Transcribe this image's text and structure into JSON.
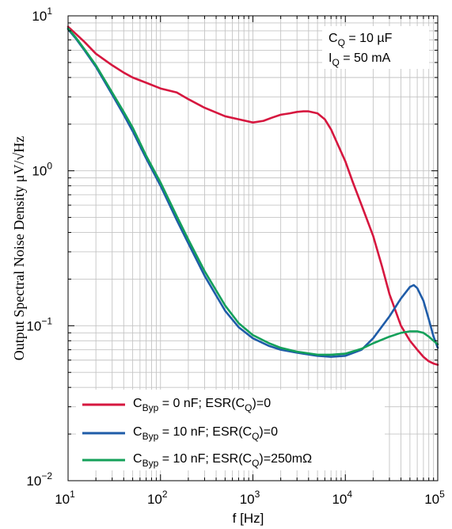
{
  "chart_data": {
    "type": "line",
    "xlabel": "f [Hz]",
    "ylabel": "Output Spectral Noise Density μV/√Hz",
    "xscale": "log",
    "yscale": "log",
    "xlim": [
      10,
      100000
    ],
    "ylim": [
      0.01,
      10
    ],
    "grid": true,
    "x_ticks": [
      {
        "value": 10,
        "base": "10",
        "exp": "1"
      },
      {
        "value": 100,
        "base": "10",
        "exp": "2"
      },
      {
        "value": 1000,
        "base": "10",
        "exp": "3"
      },
      {
        "value": 10000,
        "base": "10",
        "exp": "4"
      },
      {
        "value": 100000,
        "base": "10",
        "exp": "5"
      }
    ],
    "y_ticks": [
      {
        "value": 10,
        "base": "10",
        "exp": "1"
      },
      {
        "value": 1,
        "base": "10",
        "exp": "0"
      },
      {
        "value": 0.1,
        "base": "10",
        "exp": "−1"
      },
      {
        "value": 0.01,
        "base": "10",
        "exp": "−2"
      }
    ],
    "annotation": [
      "C",
      "Q",
      " = 10 µF",
      "I",
      "Q",
      " = 50 mA"
    ],
    "legend_position": "bottom-left",
    "series": [
      {
        "legend": [
          "C",
          "Byp",
          " = 0 nF; ESR(C",
          "Q",
          ")=0"
        ],
        "color": "#d6173f",
        "x": [
          10,
          12,
          15,
          20,
          30,
          40,
          50,
          70,
          100,
          150,
          200,
          300,
          500,
          700,
          1000,
          1300,
          1600,
          2000,
          2500,
          3000,
          3500,
          4000,
          5000,
          6000,
          7000,
          8000,
          10000,
          12000,
          15000,
          20000,
          25000,
          30000,
          40000,
          50000,
          60000,
          70000,
          80000,
          90000,
          100000
        ],
        "y": [
          8.5,
          7.7,
          6.8,
          5.7,
          4.8,
          4.3,
          4.0,
          3.7,
          3.4,
          3.2,
          2.9,
          2.55,
          2.25,
          2.15,
          2.05,
          2.1,
          2.2,
          2.3,
          2.35,
          2.4,
          2.42,
          2.42,
          2.35,
          2.15,
          1.85,
          1.55,
          1.15,
          0.85,
          0.6,
          0.38,
          0.24,
          0.16,
          0.1,
          0.08,
          0.07,
          0.063,
          0.059,
          0.057,
          0.056
        ]
      },
      {
        "legend": [
          "C",
          "Byp",
          " = 10 nF; ESR(C",
          "Q",
          ")=0"
        ],
        "color": "#1f5ca8",
        "x": [
          10,
          12,
          15,
          20,
          30,
          40,
          50,
          70,
          100,
          150,
          200,
          300,
          500,
          700,
          1000,
          1500,
          2000,
          3000,
          5000,
          7000,
          10000,
          15000,
          20000,
          30000,
          40000,
          50000,
          55000,
          60000,
          70000,
          80000,
          90000,
          100000
        ],
        "y": [
          8.2,
          7.2,
          6.0,
          4.7,
          3.1,
          2.3,
          1.8,
          1.2,
          0.8,
          0.48,
          0.34,
          0.21,
          0.125,
          0.098,
          0.083,
          0.074,
          0.07,
          0.067,
          0.064,
          0.063,
          0.064,
          0.07,
          0.083,
          0.115,
          0.15,
          0.178,
          0.183,
          0.175,
          0.145,
          0.11,
          0.085,
          0.072
        ]
      },
      {
        "legend": [
          "C",
          "Byp",
          " = 10 nF; ESR(C",
          "Q",
          ")=250mΩ"
        ],
        "color": "#14a05a",
        "x": [
          10,
          12,
          15,
          20,
          30,
          40,
          50,
          70,
          100,
          150,
          200,
          300,
          500,
          700,
          1000,
          1500,
          2000,
          3000,
          5000,
          7000,
          10000,
          15000,
          20000,
          30000,
          40000,
          50000,
          60000,
          70000,
          80000,
          90000,
          100000
        ],
        "y": [
          8.3,
          7.3,
          6.1,
          4.8,
          3.2,
          2.4,
          1.9,
          1.25,
          0.84,
          0.51,
          0.36,
          0.225,
          0.135,
          0.104,
          0.087,
          0.077,
          0.072,
          0.068,
          0.065,
          0.065,
          0.066,
          0.071,
          0.077,
          0.085,
          0.09,
          0.092,
          0.092,
          0.09,
          0.085,
          0.08,
          0.076
        ]
      }
    ]
  }
}
